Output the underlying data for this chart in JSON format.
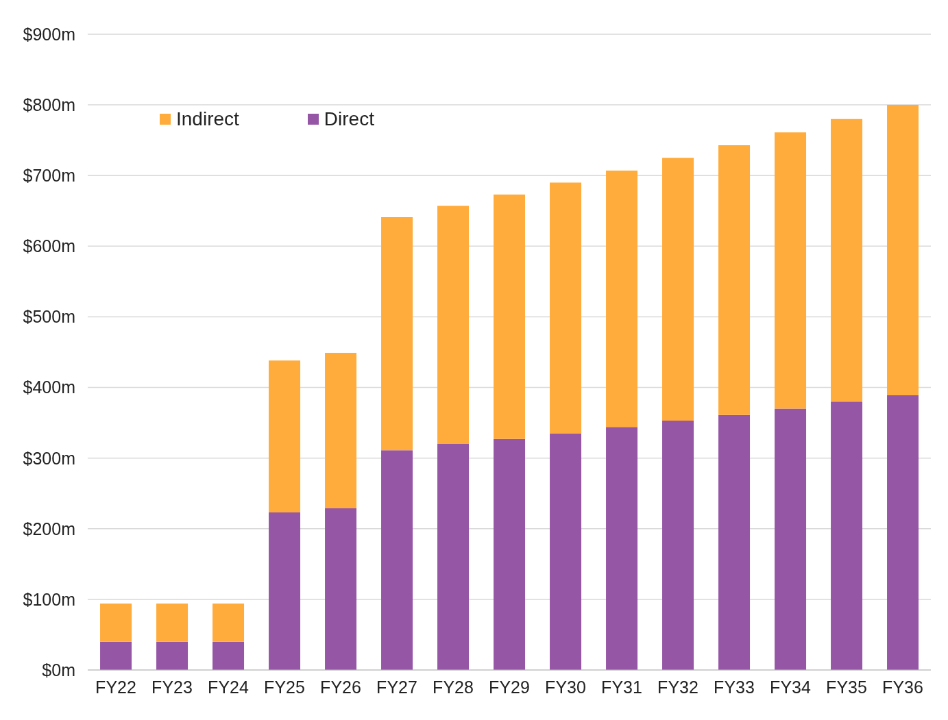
{
  "chart_data": {
    "type": "bar",
    "stacked": true,
    "categories": [
      "FY22",
      "FY23",
      "FY24",
      "FY25",
      "FY26",
      "FY27",
      "FY28",
      "FY29",
      "FY30",
      "FY31",
      "FY32",
      "FY33",
      "FY34",
      "FY35",
      "FY36"
    ],
    "series": [
      {
        "name": "Direct",
        "color": "#9656a6",
        "values": [
          40,
          40,
          40,
          223,
          229,
          311,
          320,
          327,
          335,
          344,
          353,
          361,
          370,
          380,
          389
        ]
      },
      {
        "name": "Indirect",
        "color": "#ffac3c",
        "values": [
          54,
          54,
          54,
          215,
          220,
          330,
          337,
          346,
          355,
          363,
          372,
          382,
          391,
          400,
          411
        ]
      }
    ],
    "ylim": [
      0,
      900
    ],
    "yticks": [
      {
        "value": 0,
        "label": "$0m"
      },
      {
        "value": 100,
        "label": "$100m"
      },
      {
        "value": 200,
        "label": "$200m"
      },
      {
        "value": 300,
        "label": "$300m"
      },
      {
        "value": 400,
        "label": "$400m"
      },
      {
        "value": 500,
        "label": "$500m"
      },
      {
        "value": 600,
        "label": "$600m"
      },
      {
        "value": 700,
        "label": "$700m"
      },
      {
        "value": 800,
        "label": "$800m"
      },
      {
        "value": 900,
        "label": "$900m"
      }
    ],
    "grid": "y",
    "legend": "top left"
  }
}
